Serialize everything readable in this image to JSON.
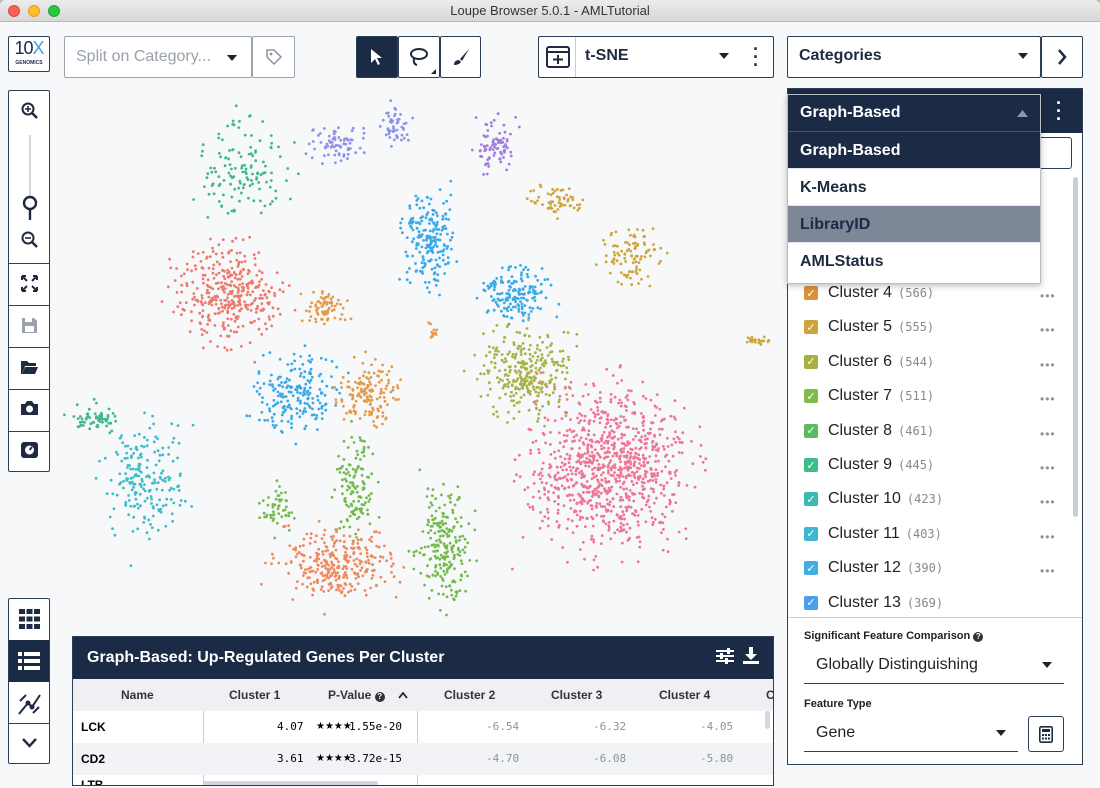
{
  "window": {
    "title": "Loupe Browser 5.0.1 - AMLTutorial"
  },
  "logo": {
    "line1": "10",
    "x": "X",
    "line2": "GENOMICS"
  },
  "toolbar": {
    "split_placeholder": "Split on Category...",
    "projection": "t-SNE",
    "categories": "Categories"
  },
  "category_select": {
    "selected": "Graph-Based",
    "options": [
      "Graph-Based",
      "K-Means",
      "LibraryID",
      "AMLStatus"
    ],
    "highlighted": "LibraryID"
  },
  "clusters": [
    {
      "label": "Cluster 4",
      "count": "(566)",
      "color": "#d8923b"
    },
    {
      "label": "Cluster 5",
      "count": "(555)",
      "color": "#cba43e"
    },
    {
      "label": "Cluster 6",
      "count": "(544)",
      "color": "#a9b040"
    },
    {
      "label": "Cluster 7",
      "count": "(511)",
      "color": "#7fbc4c"
    },
    {
      "label": "Cluster 8",
      "count": "(461)",
      "color": "#58bd62"
    },
    {
      "label": "Cluster 9",
      "count": "(445)",
      "color": "#3ebd8b"
    },
    {
      "label": "Cluster 10",
      "count": "(423)",
      "color": "#3bbbb0"
    },
    {
      "label": "Cluster 11",
      "count": "(403)",
      "color": "#3eb6cf"
    },
    {
      "label": "Cluster 12",
      "count": "(390)",
      "color": "#43aee3"
    },
    {
      "label": "Cluster 13",
      "count": "(369)",
      "color": "#4aa0ee"
    }
  ],
  "feature_panel": {
    "comparison_label": "Significant Feature Comparison",
    "comparison_value": "Globally Distinguishing",
    "type_label": "Feature Type",
    "type_value": "Gene"
  },
  "table": {
    "title": "Graph-Based: Up-Regulated Genes Per Cluster",
    "columns": [
      "Name",
      "Cluster 1",
      "P-Value",
      "Cluster 2",
      "Cluster 3",
      "Cluster 4",
      "C"
    ],
    "rows": [
      {
        "name": "LCK",
        "c1": "4.07",
        "stars": "★★★★",
        "pval": "1.55e-20",
        "c2": "-6.54",
        "c3": "-6.32",
        "c4": "-4.05"
      },
      {
        "name": "CD2",
        "c1": "3.61",
        "stars": "★★★★",
        "pval": "3.72e-15",
        "c2": "-4.70",
        "c3": "-6.08",
        "c4": "-5.80"
      },
      {
        "name": "LTB"
      }
    ]
  },
  "plot_colors": {
    "teal_green": "#3fb88b",
    "salmon": "#ee7a6c",
    "blue": "#3aa9e8",
    "orange": "#e59a4b",
    "lavender": "#8e92e6",
    "violet": "#a07be0",
    "mustard": "#cfa63c",
    "olive": "#a9b248",
    "pink": "#ee7595",
    "cyan": "#3fbcc9",
    "green": "#74bb4e",
    "peach": "#ee8a5e"
  }
}
